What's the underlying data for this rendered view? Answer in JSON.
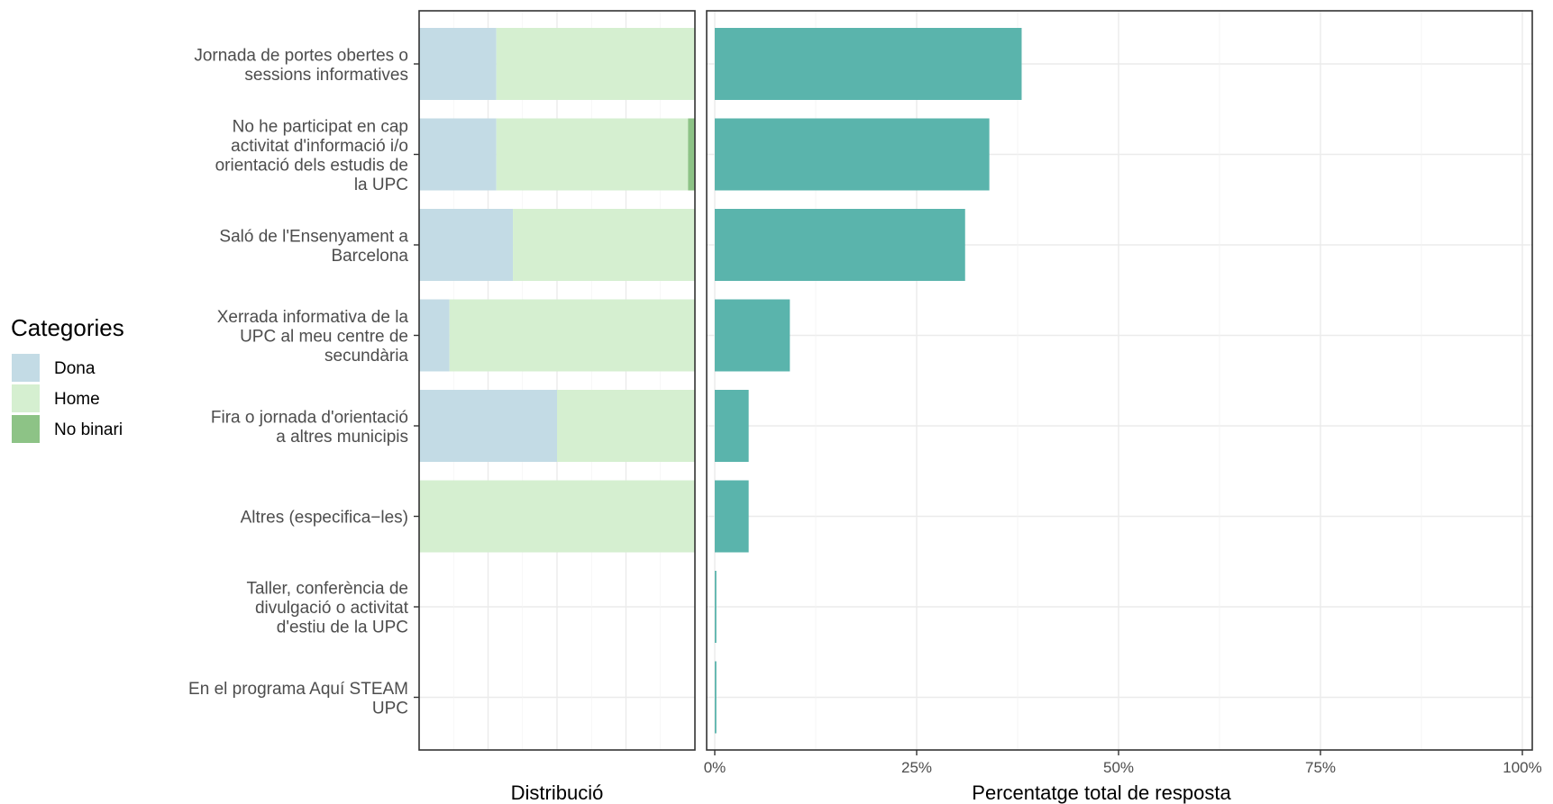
{
  "chart_data": [
    {
      "type": "bar",
      "subtype": "stacked-horizontal-100",
      "xlabel": "Distribució",
      "categories": [
        [
          "Jornada de portes obertes o",
          "sessions informatives"
        ],
        [
          "No he participat en cap",
          "activitat d'informació i/o",
          "orientació dels estudis de",
          "la UPC"
        ],
        [
          "Saló de l'Ensenyament a",
          "Barcelona"
        ],
        [
          "Xerrada informativa de la",
          "UPC al meu centre de",
          "secundària"
        ],
        [
          "Fira o jornada d'orientació",
          "a altres municipis"
        ],
        [
          "Altres (especifica−les)"
        ],
        [
          "Taller, conferència de",
          "divulgació o activitat",
          "d'estiu de la UPC"
        ],
        [
          "En el programa Aquí STEAM",
          "UPC"
        ]
      ],
      "series": [
        {
          "name": "Dona",
          "color": "#c3dbe5",
          "values": [
            0.28,
            0.28,
            0.34,
            0.11,
            0.5,
            0.0,
            0.0,
            0.0
          ]
        },
        {
          "name": "Home",
          "color": "#d5efd0",
          "values": [
            0.72,
            0.695,
            0.66,
            0.89,
            0.5,
            1.0,
            0.0,
            0.0
          ]
        },
        {
          "name": "No binari",
          "color": "#8dc386",
          "values": [
            0.0,
            0.025,
            0.0,
            0.0,
            0.0,
            0.0,
            0.0,
            0.0
          ]
        }
      ],
      "legend": {
        "title": "Categories",
        "placement": "left"
      },
      "grid": true
    },
    {
      "type": "bar",
      "subtype": "horizontal",
      "xlabel": "Percentatge total de resposta",
      "values": [
        38,
        34,
        31,
        9.3,
        4.2,
        4.2,
        0.2,
        0.2
      ],
      "color": "#5ab4ac",
      "xlim": [
        0,
        100
      ],
      "xticks": [
        "0%",
        "25%",
        "50%",
        "75%",
        "100%"
      ],
      "grid": true
    }
  ]
}
